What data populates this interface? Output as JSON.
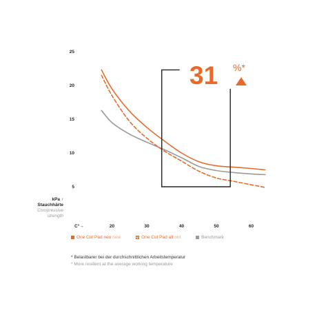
{
  "chart_data": {
    "type": "line",
    "xlim": [
      10,
      64
    ],
    "ylim": [
      0,
      25
    ],
    "x_ticks": [
      20,
      30,
      40,
      50,
      60
    ],
    "y_ticks": [
      5,
      10,
      15,
      20,
      25
    ],
    "x_label": "C°→",
    "y_label": {
      "line1": "kPa ↑",
      "line2": "Stauchhärte",
      "line3": "Compressive",
      "line4": "strength"
    },
    "series": [
      {
        "name": "One Cut Pad neu",
        "name_en": "new",
        "color": "#e8692a",
        "style": "solid",
        "x": [
          17,
          20,
          25,
          30,
          35,
          40,
          45,
          50,
          55,
          60,
          64
        ],
        "y": [
          22.3,
          19.5,
          16.2,
          13.8,
          11.8,
          10.0,
          8.7,
          8.1,
          7.9,
          7.7,
          7.5
        ]
      },
      {
        "name": "One Cut Pad alt",
        "name_en": "old",
        "color": "#e8692a",
        "style": "dashed",
        "x": [
          17,
          20,
          25,
          30,
          35,
          40,
          45,
          50,
          55,
          60,
          64
        ],
        "y": [
          21.5,
          18.5,
          14.7,
          12.2,
          10.3,
          8.8,
          7.3,
          6.3,
          5.8,
          5.3,
          4.9
        ]
      },
      {
        "name": "Benchmark",
        "name_en": "",
        "color": "#9a9a9a",
        "style": "solid",
        "x": [
          17,
          20,
          25,
          30,
          35,
          40,
          45,
          50,
          55,
          60,
          64
        ],
        "y": [
          16.3,
          14.5,
          12.8,
          11.6,
          10.5,
          9.3,
          8.0,
          7.4,
          7.1,
          6.9,
          6.8
        ]
      }
    ],
    "annotation": {
      "value": "31",
      "unit": "%*",
      "arrow": "up",
      "bracket_x": [
        34.3,
        54
      ],
      "bracket_low_y": 5,
      "bracket_high_y_left": 22.3,
      "bracket_high_y_right": 19.5,
      "color": "#e8692a"
    },
    "grid": false,
    "legend_position": "bottom"
  },
  "legend": {
    "items": [
      {
        "de": "One Cut Pad neu",
        "en": "new",
        "swatch": "solid-orange"
      },
      {
        "de": "One Cut Pad alt",
        "en": "old",
        "swatch": "hatched-orange"
      },
      {
        "de": "Benchmark",
        "en": "",
        "swatch": "solid-gray"
      }
    ]
  },
  "footnotes": {
    "de": "* Belastbarer bei der durchschnittlichen Arbeitstemperatur",
    "en": "* More resilient at the average working temperature"
  }
}
